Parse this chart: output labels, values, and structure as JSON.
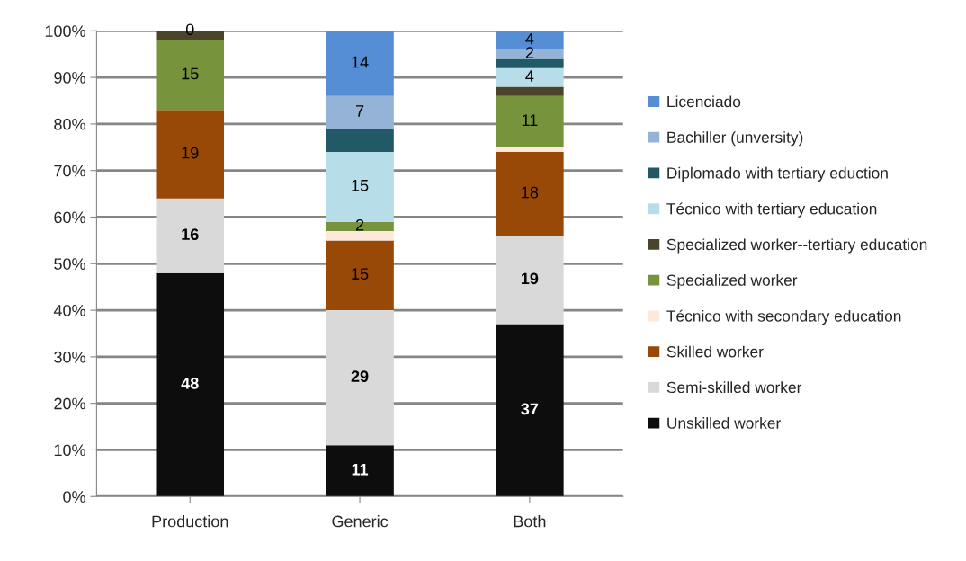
{
  "chart_data": {
    "type": "bar",
    "stacked": true,
    "categories": [
      "Production",
      "Generic",
      "Both"
    ],
    "series": [
      {
        "name": "Unskilled worker",
        "color": "#0d0d0d",
        "values": [
          48,
          11,
          37
        ],
        "value_labels": [
          "48",
          "11",
          "37"
        ]
      },
      {
        "name": "Semi-skilled worker",
        "color": "#d9d9d9",
        "values": [
          16,
          29,
          19
        ],
        "value_labels": [
          "16",
          "29",
          "19"
        ]
      },
      {
        "name": "Skilled worker",
        "color": "#984807",
        "values": [
          19,
          15,
          18
        ],
        "value_labels": [
          "19",
          "15",
          "18"
        ]
      },
      {
        "name": "Técnico with secondary education",
        "color": "#fde9d9",
        "values": [
          0,
          2,
          1
        ],
        "value_labels": [
          null,
          null,
          null
        ]
      },
      {
        "name": "Specialized worker",
        "color": "#77933c",
        "values": [
          15,
          2,
          11
        ],
        "value_labels": [
          "15",
          "2",
          "11"
        ]
      },
      {
        "name": "Specialized worker--tertiary education",
        "color": "#4a452a",
        "values": [
          2,
          0,
          2
        ],
        "value_labels": [
          null,
          null,
          null
        ]
      },
      {
        "name": "Técnico with tertiary education",
        "color": "#b7dee8",
        "values": [
          0,
          15,
          4
        ],
        "value_labels": [
          "0",
          "15",
          "4"
        ]
      },
      {
        "name": "Diplomado with tertiary eduction",
        "color": "#215967",
        "values": [
          0,
          5,
          2
        ],
        "value_labels": [
          null,
          null,
          null
        ]
      },
      {
        "name": "Bachiller (unversity)",
        "color": "#95b3d7",
        "values": [
          0,
          7,
          2
        ],
        "value_labels": [
          null,
          "7",
          "2"
        ]
      },
      {
        "name": "Licenciado",
        "color": "#558ed5",
        "values": [
          0,
          14,
          4
        ],
        "value_labels": [
          null,
          "14",
          "4"
        ]
      }
    ],
    "ylim": [
      0,
      100
    ],
    "yticks": [
      {
        "value": 0,
        "label": "0%"
      },
      {
        "value": 10,
        "label": "10%"
      },
      {
        "value": 20,
        "label": "20%"
      },
      {
        "value": 30,
        "label": "30%"
      },
      {
        "value": 40,
        "label": "40%"
      },
      {
        "value": 50,
        "label": "50%"
      },
      {
        "value": 60,
        "label": "60%"
      },
      {
        "value": 70,
        "label": "70%"
      },
      {
        "value": 80,
        "label": "80%"
      },
      {
        "value": 90,
        "label": "90%"
      },
      {
        "value": 100,
        "label": "100%"
      }
    ],
    "grid": "y",
    "legend": "right"
  }
}
